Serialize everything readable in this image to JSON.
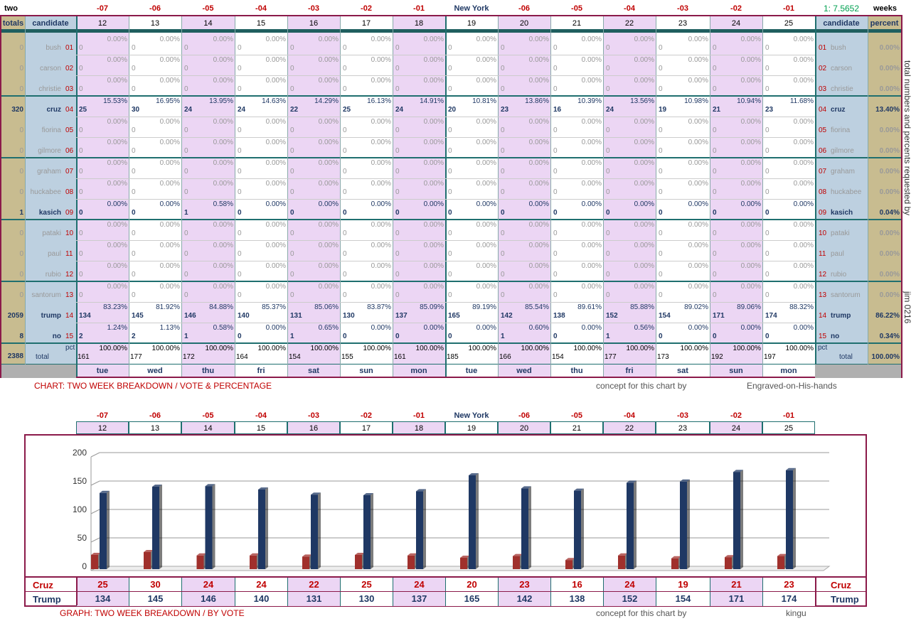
{
  "top": {
    "corner_left": "two",
    "corner_right": "weeks",
    "ratio": "1: 7.5652",
    "offsets": [
      "-07",
      "-06",
      "-05",
      "-04",
      "-03",
      "-02",
      "-01",
      "New York",
      "-06",
      "-05",
      "-04",
      "-03",
      "-02",
      "-01"
    ]
  },
  "header": {
    "totals": "totals",
    "candidate": "candidate",
    "candidate_right": "candidate",
    "percent": "percent"
  },
  "days": [
    "12",
    "13",
    "14",
    "15",
    "16",
    "17",
    "18",
    "19",
    "20",
    "21",
    "22",
    "23",
    "24",
    "25"
  ],
  "weekdays": [
    "tue",
    "wed",
    "thu",
    "fri",
    "sat",
    "sun",
    "mon",
    "tue",
    "wed",
    "thu",
    "fri",
    "sat",
    "sun",
    "mon"
  ],
  "candidates": [
    {
      "name": "bush",
      "idx": "01",
      "total": "0",
      "percent": "0.00%",
      "active": false
    },
    {
      "name": "carson",
      "idx": "02",
      "total": "0",
      "percent": "0.00%",
      "active": false
    },
    {
      "name": "christie",
      "idx": "03",
      "total": "0",
      "percent": "0.00%",
      "active": false
    },
    {
      "name": "cruz",
      "idx": "04",
      "total": "320",
      "percent": "13.40%",
      "active": true
    },
    {
      "name": "fiorina",
      "idx": "05",
      "total": "0",
      "percent": "0.00%",
      "active": false
    },
    {
      "name": "gilmore",
      "idx": "06",
      "total": "0",
      "percent": "0.00%",
      "active": false
    },
    {
      "name": "graham",
      "idx": "07",
      "total": "0",
      "percent": "0.00%",
      "active": false
    },
    {
      "name": "huckabee",
      "idx": "08",
      "total": "0",
      "percent": "0.00%",
      "active": false
    },
    {
      "name": "kasich",
      "idx": "09",
      "total": "1",
      "percent": "0.04%",
      "active": true
    },
    {
      "name": "pataki",
      "idx": "10",
      "total": "0",
      "percent": "0.00%",
      "active": false
    },
    {
      "name": "paul",
      "idx": "11",
      "total": "0",
      "percent": "0.00%",
      "active": false
    },
    {
      "name": "rubio",
      "idx": "12",
      "total": "0",
      "percent": "0.00%",
      "active": false
    },
    {
      "name": "santorum",
      "idx": "13",
      "total": "0",
      "percent": "0.00%",
      "active": false
    },
    {
      "name": "trump",
      "idx": "14",
      "total": "2059",
      "percent": "86.22%",
      "active": true
    },
    {
      "name": "no",
      "idx": "15",
      "total": "8",
      "percent": "0.34%",
      "active": true
    }
  ],
  "daily": {
    "cruz": {
      "n": [
        "25",
        "30",
        "24",
        "24",
        "22",
        "25",
        "24",
        "20",
        "23",
        "16",
        "24",
        "19",
        "21",
        "23"
      ],
      "p": [
        "15.53%",
        "16.95%",
        "13.95%",
        "14.63%",
        "14.29%",
        "16.13%",
        "14.91%",
        "10.81%",
        "13.86%",
        "10.39%",
        "13.56%",
        "10.98%",
        "10.94%",
        "11.68%"
      ]
    },
    "kasich": {
      "n": [
        "0",
        "0",
        "1",
        "0",
        "0",
        "0",
        "0",
        "0",
        "0",
        "0",
        "0",
        "0",
        "0",
        "0"
      ],
      "p": [
        "0.00%",
        "0.00%",
        "0.58%",
        "0.00%",
        "0.00%",
        "0.00%",
        "0.00%",
        "0.00%",
        "0.00%",
        "0.00%",
        "0.00%",
        "0.00%",
        "0.00%",
        "0.00%"
      ]
    },
    "trump": {
      "n": [
        "134",
        "145",
        "146",
        "140",
        "131",
        "130",
        "137",
        "165",
        "142",
        "138",
        "152",
        "154",
        "171",
        "174"
      ],
      "p": [
        "83.23%",
        "81.92%",
        "84.88%",
        "85.37%",
        "85.06%",
        "83.87%",
        "85.09%",
        "89.19%",
        "85.54%",
        "89.61%",
        "85.88%",
        "89.02%",
        "89.06%",
        "88.32%"
      ]
    },
    "no": {
      "n": [
        "2",
        "2",
        "1",
        "0",
        "1",
        "0",
        "0",
        "0",
        "1",
        "0",
        "1",
        "0",
        "0",
        "0"
      ],
      "p": [
        "1.24%",
        "1.13%",
        "0.58%",
        "0.00%",
        "0.65%",
        "0.00%",
        "0.00%",
        "0.00%",
        "0.60%",
        "0.00%",
        "0.56%",
        "0.00%",
        "0.00%",
        "0.00%"
      ]
    },
    "zero": {
      "n": "0",
      "p": "0.00%"
    }
  },
  "totals_row": {
    "grand_total": "2388",
    "label": "total",
    "pct_label": "pct",
    "percent": "100.00%",
    "n": [
      "161",
      "177",
      "172",
      "164",
      "154",
      "155",
      "161",
      "185",
      "166",
      "154",
      "177",
      "173",
      "192",
      "197"
    ],
    "p": [
      "100.00%",
      "100.00%",
      "100.00%",
      "100.00%",
      "100.00%",
      "100.00%",
      "100.00%",
      "100.00%",
      "100.00%",
      "100.00%",
      "100.00%",
      "100.00%",
      "100.00%",
      "100.00%"
    ]
  },
  "side_note": "total numbers and percents requested by",
  "side_note2": "jim 0216",
  "caption1": {
    "title": "CHART: TWO WEEK BREAKDOWN / VOTE & PERCENTAGE",
    "concept": "concept for this chart by",
    "author": "Engraved-on-His-hands"
  },
  "caption2": {
    "title": "GRAPH: TWO WEEK BREAKDOWN / BY VOTE",
    "concept": "concept for this chart by",
    "author": "kingu"
  },
  "colors": {
    "cruz": "#a0302c",
    "trump": "#1f3864",
    "frame": "#8b1a4a",
    "pink": "#ecd6f4",
    "tan": "#c8bc90",
    "blue": "#bdd0e0"
  },
  "chart_data": {
    "type": "bar",
    "categories": [
      "12",
      "13",
      "14",
      "15",
      "16",
      "17",
      "18",
      "19",
      "20",
      "21",
      "22",
      "23",
      "24",
      "25"
    ],
    "series": [
      {
        "name": "Cruz",
        "values": [
          25,
          30,
          24,
          24,
          22,
          25,
          24,
          20,
          23,
          16,
          24,
          19,
          21,
          23
        ]
      },
      {
        "name": "Trump",
        "values": [
          134,
          145,
          146,
          140,
          131,
          130,
          137,
          165,
          142,
          138,
          152,
          154,
          171,
          174
        ]
      }
    ],
    "ylim": [
      0,
      200
    ],
    "yticks": [
      "0",
      "50",
      "100",
      "150",
      "200"
    ],
    "grid": true,
    "legend": "bottom"
  }
}
